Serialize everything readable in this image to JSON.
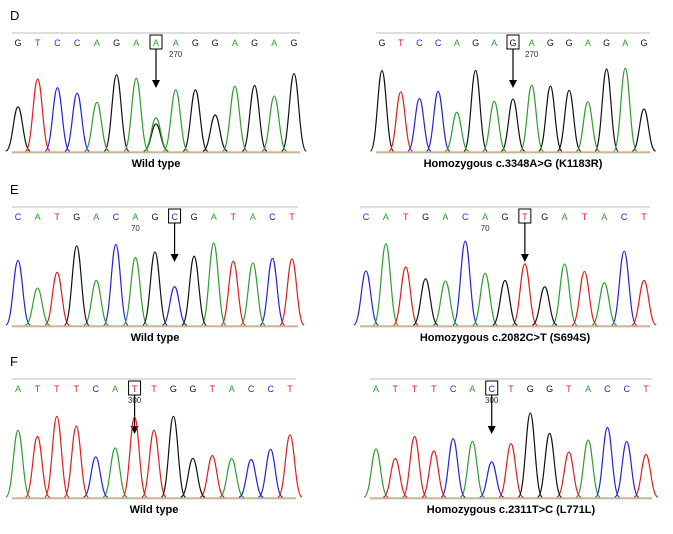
{
  "colors": {
    "A": "#2e9e2e",
    "C": "#2323d8",
    "G": "#111111",
    "T": "#e01e1e"
  },
  "rows": [
    {
      "label": "D",
      "panels": [
        {
          "bases": "GTCCAGAAAGGAGAG",
          "highlight": 7,
          "pos_label": "270",
          "pos_index": 8,
          "caption": "Wild type",
          "het": true
        },
        {
          "bases": "GTCCAGAGAGGAGAG",
          "highlight": 7,
          "pos_label": "270",
          "pos_index": 8,
          "caption": "Homozygous c.3348A>G (K1183R)",
          "het": false
        }
      ]
    },
    {
      "label": "E",
      "panels": [
        {
          "bases": "CATGACAGCGATACT",
          "highlight": 8,
          "pos_label": "70",
          "pos_index": 6,
          "caption": "Wild type",
          "het": false
        },
        {
          "bases": "CATGACAGTGATACT",
          "highlight": 8,
          "pos_label": "70",
          "pos_index": 6,
          "caption": "Homozygous c.2082C>T (S694S)",
          "het": false
        }
      ]
    },
    {
      "label": "F",
      "panels": [
        {
          "bases": "ATTTCATTGGTACCT",
          "highlight": 6,
          "pos_label": "300",
          "pos_index": 6,
          "caption": "Wild type",
          "het": false
        },
        {
          "bases": "ATTTCACTGGTACCT",
          "highlight": 6,
          "pos_label": "300",
          "pos_index": 6,
          "caption": "Homozygous c.2311T>C (L771L)",
          "het": false
        }
      ]
    }
  ]
}
